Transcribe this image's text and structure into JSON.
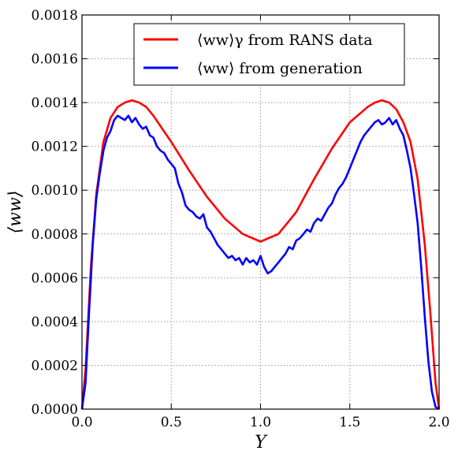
{
  "chart_data": {
    "type": "line",
    "xlabel": "Y",
    "ylabel": "⟨ww⟩",
    "xlim": [
      0.0,
      2.0
    ],
    "ylim": [
      0.0,
      0.0018
    ],
    "x_ticks": [
      "0.0",
      "0.5",
      "1.0",
      "1.5",
      "2.0"
    ],
    "y_ticks": [
      "0.0000",
      "0.0002",
      "0.0004",
      "0.0006",
      "0.0008",
      "0.0010",
      "0.0012",
      "0.0014",
      "0.0016",
      "0.0018"
    ],
    "grid": true,
    "legend_position": "top-right",
    "series": [
      {
        "name": "⟨ww⟩γ from RANS data",
        "color": "#ff0000",
        "x": [
          0.0,
          0.02,
          0.05,
          0.08,
          0.12,
          0.16,
          0.2,
          0.24,
          0.28,
          0.32,
          0.36,
          0.4,
          0.5,
          0.6,
          0.7,
          0.8,
          0.9,
          1.0,
          1.1,
          1.2,
          1.3,
          1.4,
          1.5,
          1.6,
          1.64,
          1.68,
          1.72,
          1.76,
          1.8,
          1.84,
          1.88,
          1.92,
          1.95,
          1.98,
          2.0
        ],
        "y": [
          0.0,
          0.00018,
          0.00065,
          0.00098,
          0.00122,
          0.00133,
          0.00138,
          0.0014,
          0.00141,
          0.0014,
          0.00138,
          0.00134,
          0.00122,
          0.00109,
          0.00097,
          0.00087,
          0.0008,
          0.000765,
          0.0008,
          0.0009,
          0.00105,
          0.00119,
          0.00131,
          0.00138,
          0.0014,
          0.00141,
          0.0014,
          0.00137,
          0.00131,
          0.00122,
          0.00105,
          0.00075,
          0.00045,
          0.00012,
          0.0
        ]
      },
      {
        "name": "⟨ww⟩ from generation",
        "color": "#0000ff",
        "x": [
          0.0,
          0.02,
          0.04,
          0.06,
          0.08,
          0.1,
          0.12,
          0.14,
          0.16,
          0.18,
          0.2,
          0.22,
          0.24,
          0.26,
          0.28,
          0.3,
          0.32,
          0.34,
          0.36,
          0.38,
          0.4,
          0.42,
          0.44,
          0.46,
          0.48,
          0.5,
          0.52,
          0.54,
          0.56,
          0.58,
          0.6,
          0.62,
          0.64,
          0.66,
          0.68,
          0.7,
          0.72,
          0.74,
          0.76,
          0.78,
          0.8,
          0.82,
          0.84,
          0.86,
          0.88,
          0.9,
          0.92,
          0.94,
          0.96,
          0.98,
          1.0,
          1.02,
          1.04,
          1.06,
          1.08,
          1.1,
          1.12,
          1.14,
          1.16,
          1.18,
          1.2,
          1.22,
          1.24,
          1.26,
          1.28,
          1.3,
          1.32,
          1.34,
          1.36,
          1.38,
          1.4,
          1.42,
          1.44,
          1.46,
          1.48,
          1.5,
          1.52,
          1.54,
          1.56,
          1.58,
          1.6,
          1.62,
          1.64,
          1.66,
          1.68,
          1.7,
          1.72,
          1.74,
          1.76,
          1.78,
          1.8,
          1.82,
          1.84,
          1.86,
          1.88,
          1.9,
          1.92,
          1.94,
          1.96,
          1.98,
          2.0
        ],
        "y": [
          0.0,
          0.00012,
          0.00045,
          0.00075,
          0.00096,
          0.00108,
          0.00118,
          0.00124,
          0.00127,
          0.00132,
          0.00134,
          0.00133,
          0.00132,
          0.00134,
          0.00131,
          0.00133,
          0.0013,
          0.00128,
          0.00129,
          0.00125,
          0.00124,
          0.0012,
          0.00118,
          0.00117,
          0.00114,
          0.00112,
          0.0011,
          0.00103,
          0.00099,
          0.00093,
          0.00091,
          0.0009,
          0.00088,
          0.00087,
          0.00089,
          0.00083,
          0.00081,
          0.00078,
          0.00075,
          0.00073,
          0.00071,
          0.00069,
          0.0007,
          0.00068,
          0.00069,
          0.00066,
          0.00069,
          0.00067,
          0.00068,
          0.00066,
          0.0007,
          0.00065,
          0.00062,
          0.00063,
          0.00065,
          0.00067,
          0.00069,
          0.00071,
          0.00074,
          0.00073,
          0.00077,
          0.00078,
          0.0008,
          0.00082,
          0.00081,
          0.00085,
          0.00087,
          0.00086,
          0.00089,
          0.00092,
          0.00094,
          0.00098,
          0.00101,
          0.00103,
          0.00106,
          0.0011,
          0.00114,
          0.00118,
          0.00122,
          0.00125,
          0.00127,
          0.00129,
          0.00131,
          0.00132,
          0.0013,
          0.00131,
          0.00133,
          0.0013,
          0.00132,
          0.00128,
          0.00125,
          0.00118,
          0.0011,
          0.00098,
          0.00085,
          0.00065,
          0.00042,
          0.00022,
          8e-05,
          1e-05,
          0.0
        ]
      }
    ]
  }
}
